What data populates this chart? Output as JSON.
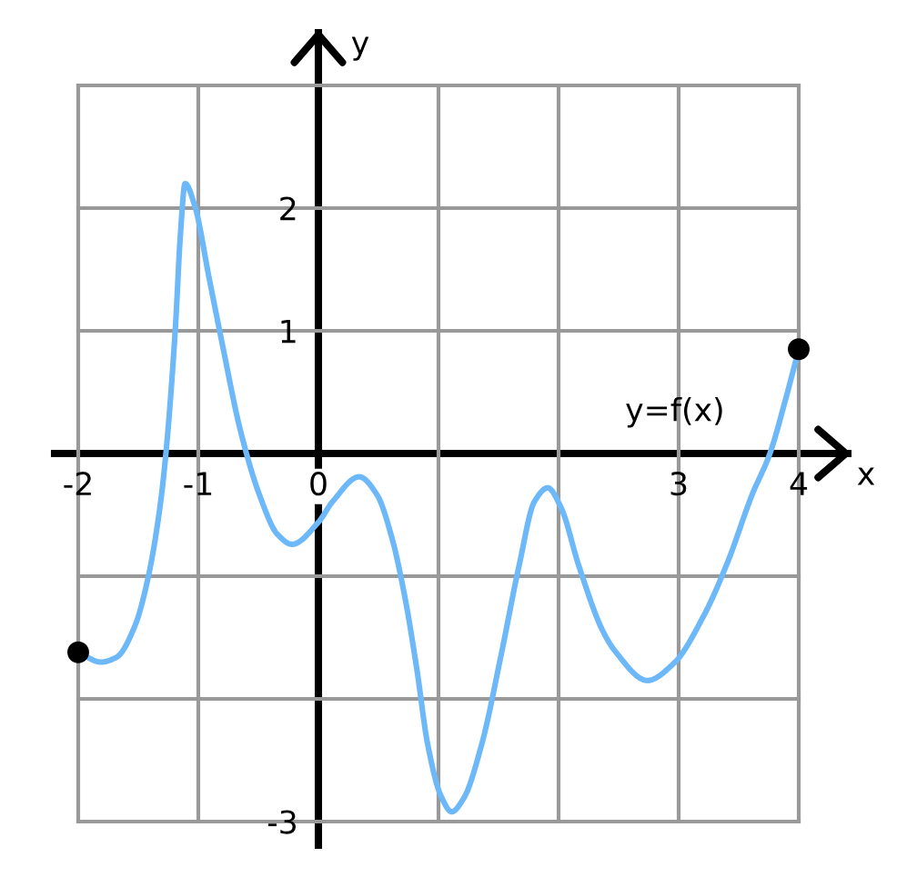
{
  "chart_data": {
    "type": "line",
    "xlabel": "x",
    "ylabel": "y",
    "xlim": [
      -2,
      4
    ],
    "ylim": [
      -3,
      3
    ],
    "xticks": [
      -2,
      -1,
      0,
      {
        "value": 1,
        "label": null
      },
      {
        "value": 2,
        "label": null
      },
      3,
      4
    ],
    "yticks": [
      -3,
      {
        "value": -2,
        "label": null
      },
      {
        "value": -1,
        "label": null
      },
      {
        "value": 0,
        "label": null
      },
      1,
      2,
      {
        "value": 3,
        "label": null
      }
    ],
    "grid": true,
    "series": [
      {
        "name": "y=f(x)",
        "color": "#6cb8f8",
        "x": [
          -2.0,
          -1.81,
          -1.68,
          -1.53,
          -1.42,
          -1.32,
          -1.27,
          -1.19,
          -1.15,
          -1.11,
          -1.03,
          -0.91,
          -0.8,
          -0.65,
          -0.49,
          -0.34,
          -0.22,
          0.0,
          0.12,
          0.34,
          0.49,
          0.61,
          0.72,
          0.82,
          0.91,
          1.02,
          1.11,
          1.21,
          1.36,
          1.52,
          1.67,
          1.8,
          1.91,
          2.02,
          2.17,
          2.37,
          2.47,
          2.74,
          2.96,
          3.21,
          3.41,
          3.61,
          3.76,
          3.89,
          4.0
        ],
        "values": [
          -1.62,
          -1.7,
          -1.66,
          -1.41,
          -1.02,
          -0.44,
          0.0,
          1.04,
          1.77,
          2.2,
          2.02,
          1.43,
          0.89,
          0.19,
          -0.34,
          -0.66,
          -0.74,
          -0.56,
          -0.39,
          -0.19,
          -0.34,
          -0.68,
          -1.17,
          -1.76,
          -2.37,
          -2.79,
          -2.92,
          -2.81,
          -2.37,
          -1.65,
          -0.92,
          -0.39,
          -0.28,
          -0.44,
          -0.92,
          -1.45,
          -1.61,
          -1.85,
          -1.71,
          -1.32,
          -0.88,
          -0.34,
          0.0,
          0.44,
          0.85
        ]
      },
      {
        "type": "scatter",
        "color": "#000000",
        "marker": "circle",
        "x": [
          -2,
          4
        ],
        "values": [
          -1.62,
          0.85
        ]
      }
    ]
  }
}
